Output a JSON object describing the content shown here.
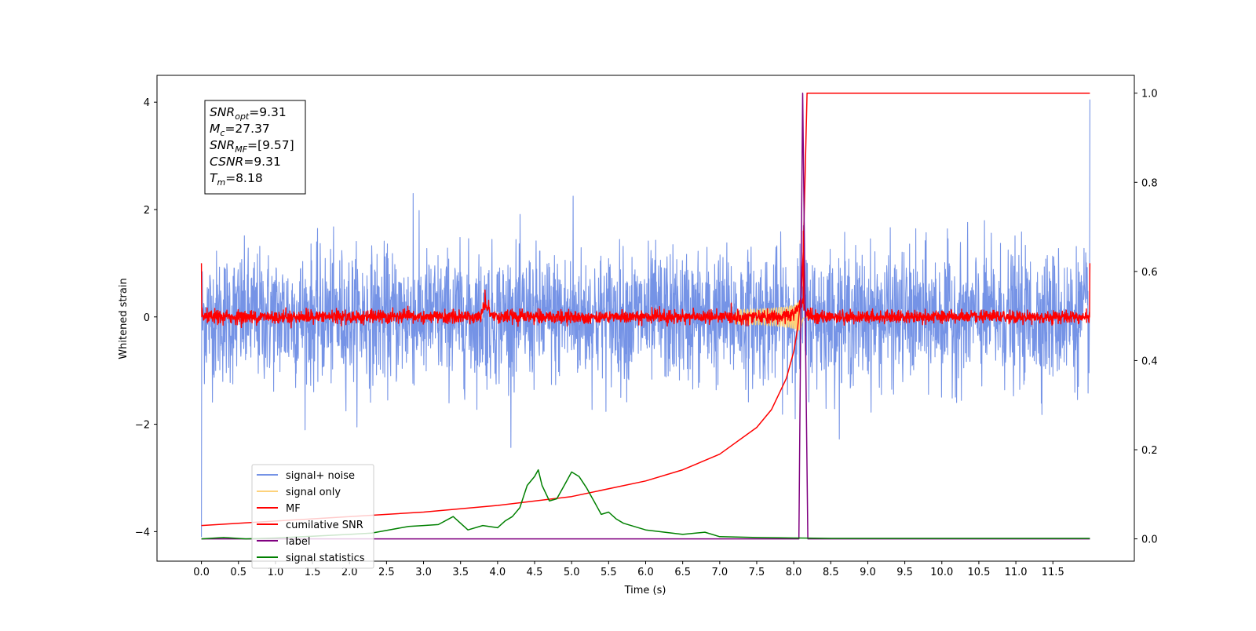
{
  "chart_data": {
    "type": "line",
    "xlabel": "Time (s)",
    "ylabel": "Whitened strain",
    "xlim": [
      -0.6,
      12.6
    ],
    "ylim": [
      -4.55,
      4.5
    ],
    "ylim_right": [
      -0.05,
      1.04
    ],
    "x_ticks": [
      "0.0",
      "0.5",
      "1.0",
      "1.5",
      "2.0",
      "2.5",
      "3.0",
      "3.5",
      "4.0",
      "4.5",
      "5.0",
      "5.5",
      "6.0",
      "6.5",
      "7.0",
      "7.5",
      "8.0",
      "8.5",
      "9.0",
      "9.5",
      "10.0",
      "10.5",
      "11.0",
      "11.5"
    ],
    "y_ticks_left": [
      "4",
      "2",
      "0",
      "−2",
      "−4"
    ],
    "y_ticks_right": [
      "1.0",
      "0.8",
      "0.6",
      "0.4",
      "0.2",
      "0.0"
    ],
    "legend_position": "lower-left",
    "annotation": {
      "lines": [
        {
          "sym": "SNR",
          "sub": "opt",
          "value": "=9.31"
        },
        {
          "sym": "M",
          "sub": "c",
          "value": "=27.37"
        },
        {
          "sym": "SNR",
          "sub": "MF",
          "value": "=[9.57]"
        },
        {
          "sym": "CSNR",
          "sub": "",
          "value": "=9.31"
        },
        {
          "sym": "T",
          "sub": "m",
          "value": "=8.18"
        }
      ]
    },
    "merger_time": 8.18,
    "series": [
      {
        "name": "signal+ noise",
        "color": "#7593e6",
        "axis": "left",
        "kind": "noise",
        "amplitude_approx": 1.1,
        "extremes": [
          [
            0.0,
            -4.1
          ],
          [
            2.86,
            2.3
          ],
          [
            5.02,
            2.25
          ],
          [
            8.13,
            1.7
          ],
          [
            12.0,
            4.05
          ]
        ]
      },
      {
        "name": "signal only",
        "color": "#fdd27b",
        "axis": "left",
        "kind": "chirp",
        "peak_time": 8.1,
        "peak_amplitude": 0.35
      },
      {
        "name": "MF",
        "color": "#ff0000",
        "axis": "left",
        "kind": "noise",
        "amplitude_approx": 0.12,
        "extremes": [
          [
            0.0,
            1.0
          ],
          [
            3.83,
            0.5
          ],
          [
            8.13,
            1.6
          ],
          [
            12.0,
            1.0
          ]
        ]
      },
      {
        "name": "cumilative SNR",
        "color": "#ff0000",
        "axis": "right",
        "x": [
          0.0,
          1.0,
          2.0,
          3.0,
          4.0,
          5.0,
          6.0,
          6.5,
          7.0,
          7.5,
          7.7,
          7.9,
          8.0,
          8.05,
          8.1,
          8.13,
          8.18,
          12.0
        ],
        "y": [
          0.03,
          0.04,
          0.05,
          0.06,
          0.075,
          0.095,
          0.13,
          0.155,
          0.19,
          0.25,
          0.29,
          0.36,
          0.42,
          0.47,
          0.55,
          0.65,
          1.0,
          1.0
        ]
      },
      {
        "name": "label",
        "color": "#800080",
        "axis": "right",
        "x": [
          0.0,
          8.07,
          8.12,
          8.19,
          8.2,
          12.0
        ],
        "y": [
          0.0,
          0.0,
          1.0,
          0.0,
          0.0,
          0.0
        ]
      },
      {
        "name": "signal statistics",
        "color": "#008000",
        "axis": "right",
        "x": [
          0.0,
          0.3,
          0.6,
          1.0,
          1.5,
          2.0,
          2.3,
          2.6,
          2.8,
          3.0,
          3.2,
          3.4,
          3.6,
          3.8,
          4.0,
          4.1,
          4.2,
          4.3,
          4.4,
          4.5,
          4.55,
          4.6,
          4.7,
          4.8,
          4.9,
          5.0,
          5.1,
          5.2,
          5.3,
          5.4,
          5.5,
          5.6,
          5.7,
          6.0,
          6.5,
          6.8,
          7.0,
          7.5,
          8.0,
          8.5,
          12.0
        ],
        "y": [
          0.0,
          0.003,
          0.0,
          0.002,
          0.006,
          0.01,
          0.013,
          0.022,
          0.028,
          0.03,
          0.032,
          0.05,
          0.02,
          0.03,
          0.025,
          0.04,
          0.05,
          0.07,
          0.12,
          0.14,
          0.155,
          0.12,
          0.085,
          0.09,
          0.12,
          0.15,
          0.14,
          0.115,
          0.085,
          0.055,
          0.06,
          0.045,
          0.035,
          0.02,
          0.01,
          0.015,
          0.005,
          0.003,
          0.002,
          0.001,
          0.001
        ]
      }
    ]
  }
}
